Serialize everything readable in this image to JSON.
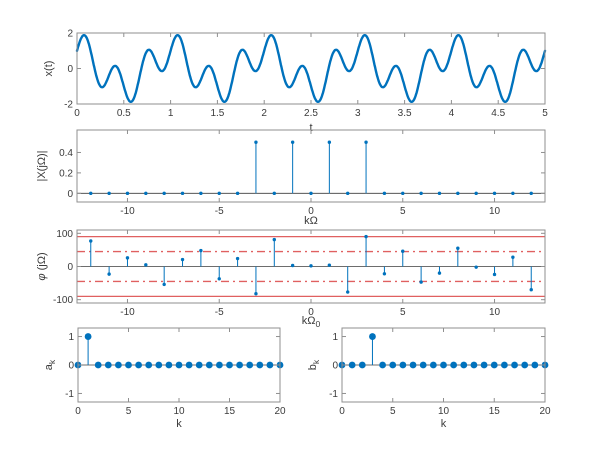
{
  "figure_title": "",
  "colors": {
    "blue": "#0072BD",
    "red_reference": "#e06060",
    "axis_box": "#8f8f8f",
    "text": "#3b3b3b",
    "background": "#ffffff"
  },
  "chart_data": [
    {
      "id": "xt",
      "type": "line",
      "title": "",
      "xlabel": "t",
      "ylabel": "x(t)",
      "xlim": [
        0,
        5
      ],
      "ylim": [
        -2,
        2
      ],
      "xticks": [
        0,
        0.5,
        1,
        1.5,
        2,
        2.5,
        3,
        3.5,
        4,
        4.5,
        5
      ],
      "yticks": [
        -2,
        0,
        2
      ],
      "signal": {
        "formula": "x(t) = cos(2*pi*t) + sin(2*pi*3*t)",
        "period": 1,
        "components": [
          {
            "wave": "cos",
            "amplitude": 1,
            "harmonic": 1
          },
          {
            "wave": "sin",
            "amplitude": 1,
            "harmonic": 3
          }
        ],
        "t_range": [
          0,
          5
        ]
      },
      "line_width": 2.4
    },
    {
      "id": "mag",
      "type": "stem",
      "title": "",
      "xlabel": "kΩ",
      "ylabel": "|X(jΩ)|",
      "xlim": [
        -12.75,
        12.75
      ],
      "ylim": [
        -0.085,
        0.62
      ],
      "xticks": [
        -10,
        -5,
        0,
        5,
        10
      ],
      "yticks": [
        0,
        0.2,
        0.4
      ],
      "x": [
        -12,
        -11,
        -10,
        -9,
        -8,
        -7,
        -6,
        -5,
        -4,
        -3,
        -2,
        -1,
        0,
        1,
        2,
        3,
        4,
        5,
        6,
        7,
        8,
        9,
        10,
        11,
        12
      ],
      "values": [
        0,
        0,
        0,
        0,
        0,
        0,
        0,
        0,
        0,
        0.5,
        0,
        0.5,
        0,
        0.5,
        0,
        0.5,
        0,
        0,
        0,
        0,
        0,
        0,
        0,
        0,
        0
      ],
      "marker_radius": 1.7
    },
    {
      "id": "phase",
      "type": "stem",
      "title": "",
      "xlabel": "kΩ_0",
      "ylabel": "φ (jΩ)",
      "xlim": [
        -12.75,
        12.75
      ],
      "ylim": [
        -110,
        110
      ],
      "xticks": [
        -10,
        -5,
        0,
        5,
        10
      ],
      "yticks": [
        -100,
        0,
        100
      ],
      "x": [
        -12,
        -11,
        -10,
        -9,
        -8,
        -7,
        -6,
        -5,
        -4,
        -3,
        -2,
        -1,
        0,
        1,
        2,
        3,
        4,
        5,
        6,
        7,
        8,
        9,
        10,
        11,
        12
      ],
      "values": [
        77,
        -23,
        26,
        5,
        -54,
        21,
        48,
        -37,
        24,
        -82,
        81,
        3,
        2,
        4,
        -77,
        90,
        -22,
        46,
        -47,
        -20,
        55,
        -2,
        -24,
        28,
        -70
      ],
      "ref_lines": [
        {
          "y": 90,
          "style": "solid"
        },
        {
          "y": -90,
          "style": "solid"
        },
        {
          "y": 45,
          "style": "dashdot"
        },
        {
          "y": -45,
          "style": "dashdot"
        }
      ],
      "marker_radius": 1.7
    },
    {
      "id": "ak",
      "type": "stem",
      "title": "",
      "xlabel": "k",
      "ylabel": "a_k",
      "xlim": [
        0,
        20
      ],
      "ylim": [
        -1.3,
        1.3
      ],
      "xticks": [
        0,
        5,
        10,
        15,
        20
      ],
      "yticks": [
        -1,
        0,
        1
      ],
      "x": [
        0,
        1,
        2,
        3,
        4,
        5,
        6,
        7,
        8,
        9,
        10,
        11,
        12,
        13,
        14,
        15,
        16,
        17,
        18,
        19,
        20
      ],
      "values": [
        0,
        1,
        0,
        0,
        0,
        0,
        0,
        0,
        0,
        0,
        0,
        0,
        0,
        0,
        0,
        0,
        0,
        0,
        0,
        0,
        0
      ],
      "marker_radius": 3.4
    },
    {
      "id": "bk",
      "type": "stem",
      "title": "",
      "xlabel": "k",
      "ylabel": "b_k",
      "xlim": [
        0,
        20
      ],
      "ylim": [
        -1.3,
        1.3
      ],
      "xticks": [
        0,
        5,
        10,
        15,
        20
      ],
      "yticks": [
        -1,
        0,
        1
      ],
      "x": [
        0,
        1,
        2,
        3,
        4,
        5,
        6,
        7,
        8,
        9,
        10,
        11,
        12,
        13,
        14,
        15,
        16,
        17,
        18,
        19,
        20
      ],
      "values": [
        0,
        0,
        0,
        1,
        0,
        0,
        0,
        0,
        0,
        0,
        0,
        0,
        0,
        0,
        0,
        0,
        0,
        0,
        0,
        0,
        0
      ],
      "marker_radius": 3.4
    }
  ]
}
